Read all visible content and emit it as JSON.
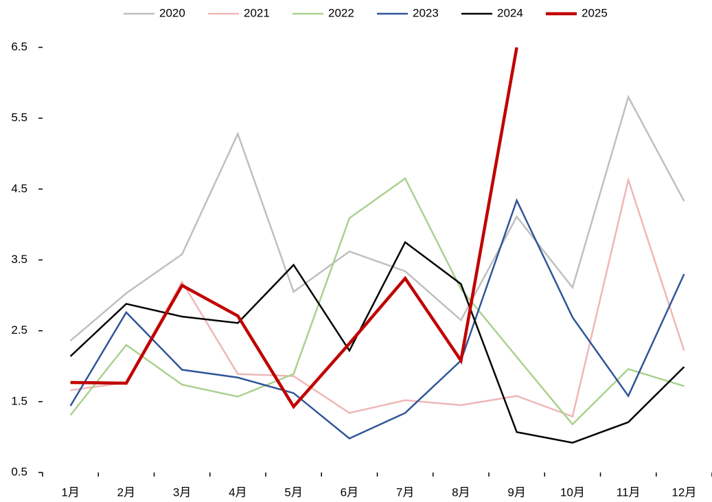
{
  "chart_data": {
    "type": "line",
    "categories": [
      "1月",
      "2月",
      "3月",
      "4月",
      "5月",
      "6月",
      "7月",
      "8月",
      "9月",
      "10月",
      "11月",
      "12月"
    ],
    "series": [
      {
        "name": "2020",
        "color": "#bfbfbf",
        "values": [
          2.36,
          3.03,
          3.58,
          5.28,
          3.05,
          3.62,
          3.34,
          2.65,
          4.11,
          3.11,
          5.8,
          4.33
        ]
      },
      {
        "name": "2021",
        "color": "#f0b6b6",
        "values": [
          1.66,
          1.77,
          3.19,
          1.89,
          1.86,
          1.34,
          1.52,
          1.45,
          1.58,
          1.29,
          4.63,
          2.22
        ]
      },
      {
        "name": "2022",
        "color": "#a9d18e",
        "values": [
          1.31,
          2.3,
          1.74,
          1.57,
          1.89,
          4.09,
          4.65,
          3.09,
          2.13,
          1.18,
          1.96,
          1.72
        ]
      },
      {
        "name": "2023",
        "color": "#2f5597",
        "values": [
          1.44,
          2.76,
          1.95,
          1.84,
          1.62,
          0.98,
          1.34,
          2.08,
          4.34,
          2.69,
          1.58,
          3.3
        ]
      },
      {
        "name": "2024",
        "color": "#000000",
        "values": [
          2.14,
          2.88,
          2.7,
          2.61,
          3.43,
          2.22,
          3.75,
          3.16,
          1.07,
          0.92,
          1.21,
          1.99
        ]
      },
      {
        "name": "2025",
        "color": "#c00000",
        "values": [
          1.77,
          1.76,
          3.14,
          2.71,
          1.43,
          2.32,
          3.24,
          2.08,
          6.5,
          null,
          null,
          null
        ]
      }
    ],
    "ylim": [
      0.5,
      6.5
    ],
    "yticks": [
      0.5,
      1.5,
      2.5,
      3.5,
      4.5,
      5.5,
      6.5
    ],
    "legend": "top"
  }
}
